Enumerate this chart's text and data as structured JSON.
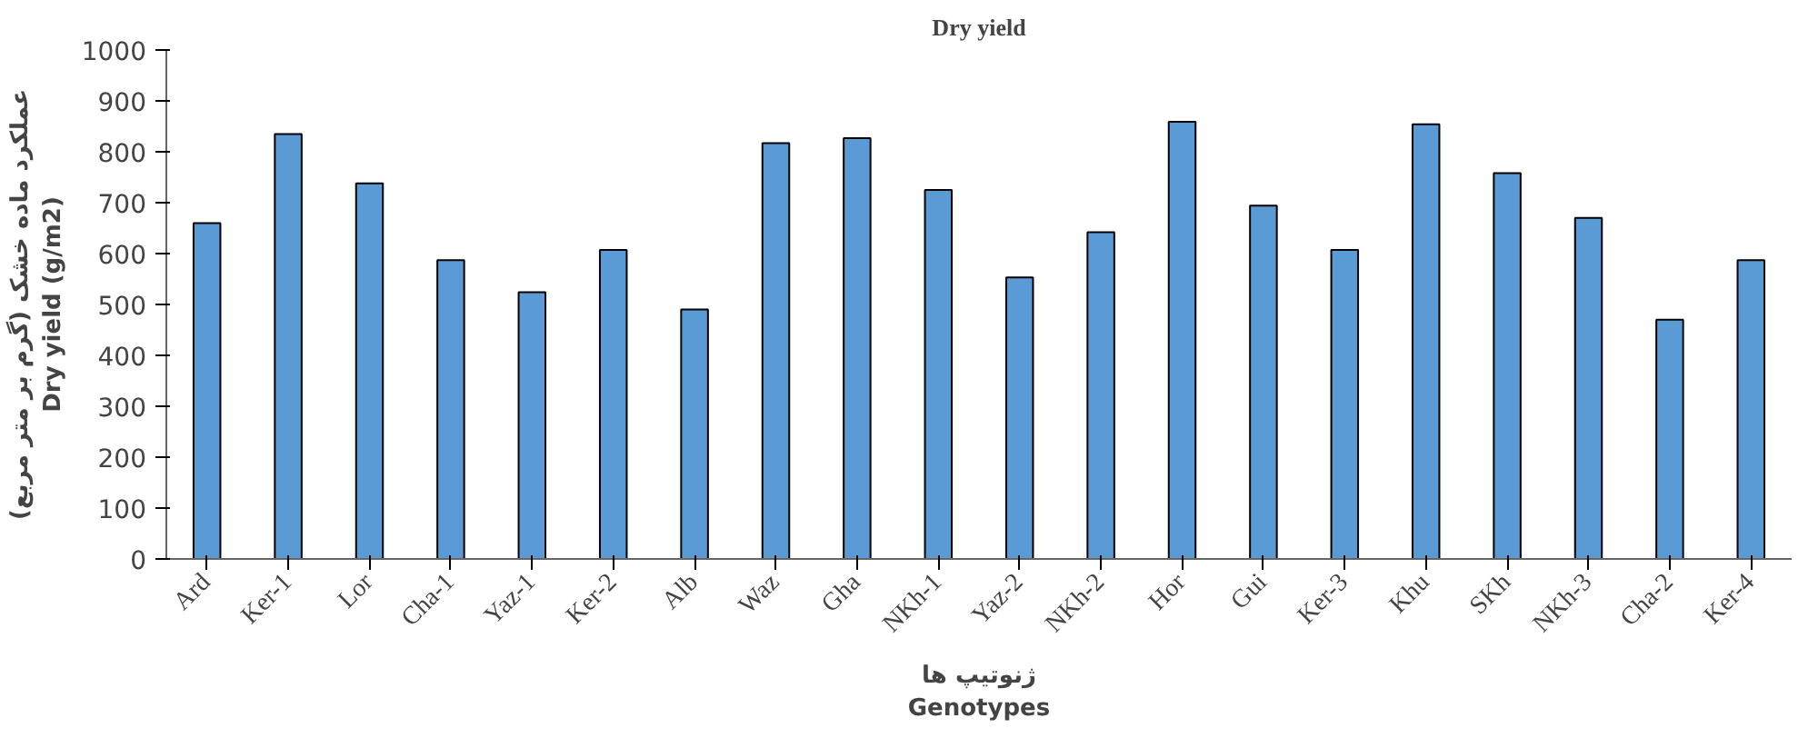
{
  "chart_data": {
    "type": "bar",
    "title": "Dry yield",
    "xlabel": "ژنوتیپ ها\nGenotypes",
    "ylabel": "عملکرد ماده خشک (گرم بر متر مربع)\nDry yield (g/m2)",
    "categories": [
      "Ard",
      "Ker-1",
      "Lor",
      "Cha-1",
      "Yaz-1",
      "Ker-2",
      "Alb",
      "Waz",
      "Gha",
      "NKh-1",
      "Yaz-2",
      "NKh-2",
      "Hor",
      "Gui",
      "Ker-3",
      "Khu",
      "SKh",
      "NKh-3",
      "Cha-2",
      "Ker-4"
    ],
    "values": [
      660,
      835,
      738,
      587,
      524,
      607,
      490,
      817,
      827,
      725,
      553,
      642,
      859,
      694,
      607,
      854,
      758,
      670,
      470,
      587
    ],
    "color": "#5b9bd5",
    "ylim": [
      0,
      1000
    ],
    "yticks": [
      0,
      100,
      200,
      300,
      400,
      500,
      600,
      700,
      800,
      900,
      1000
    ],
    "grid": false
  }
}
